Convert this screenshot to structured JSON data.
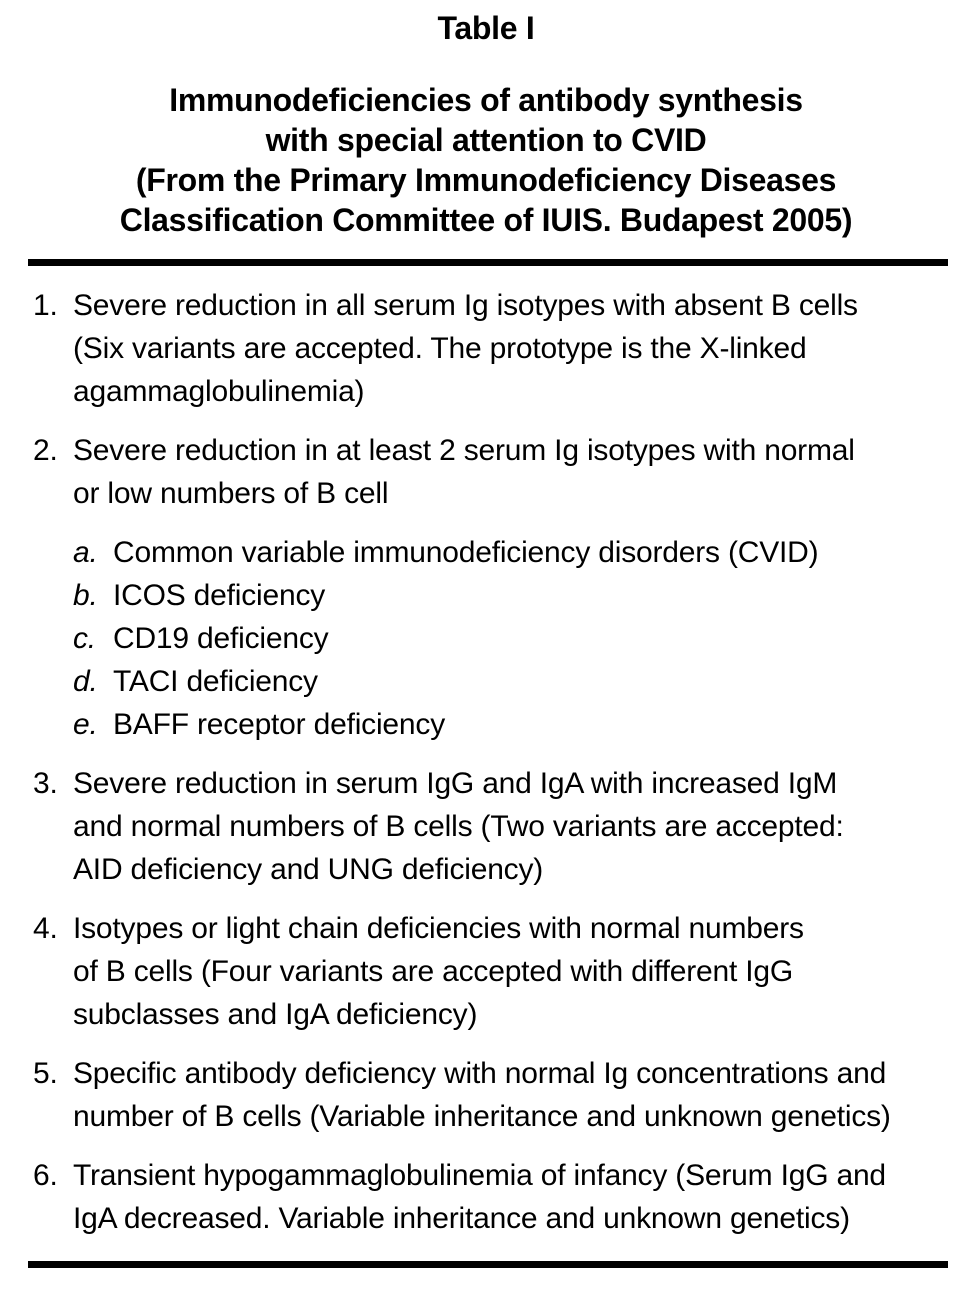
{
  "colors": {
    "text": "#000000",
    "background": "#ffffff",
    "rule": "#000000"
  },
  "header": {
    "table_label": "Table I",
    "title": "Immunodeficiencies of antibody synthesis\nwith special attention to CVID\n(From the Primary Immunodeficiency Diseases\nClassification Committee of IUIS. Budapest 2005)"
  },
  "items": [
    {
      "marker": "1.",
      "text": "Severe reduction in all serum Ig isotypes with absent B cells\n(Six variants are accepted. The prototype is the X-linked\nagammaglobulinemia)"
    },
    {
      "marker": "2.",
      "text": "Severe reduction in at least 2 serum Ig isotypes with normal\nor low numbers of B cell",
      "sub": [
        {
          "marker": "a.",
          "text": "Common variable immunodeficiency disorders (CVID)"
        },
        {
          "marker": "b.",
          "text": "ICOS deficiency"
        },
        {
          "marker": "c.",
          "text": "CD19 deficiency"
        },
        {
          "marker": "d.",
          "text": "TACI deficiency"
        },
        {
          "marker": "e.",
          "text": "BAFF receptor deficiency"
        }
      ]
    },
    {
      "marker": "3.",
      "text": "Severe reduction in serum IgG and IgA with increased IgM\nand normal numbers of B cells (Two variants are accepted:\nAID deficiency and UNG deficiency)"
    },
    {
      "marker": "4.",
      "text": "Isotypes or light chain deficiencies with normal numbers\nof B cells (Four variants are accepted with different IgG\nsubclasses and IgA deficiency)"
    },
    {
      "marker": "5.",
      "text": "Specific antibody deficiency with normal Ig concentrations and\nnumber of B cells (Variable inheritance and unknown genetics)"
    },
    {
      "marker": "6.",
      "text": "Transient hypogammaglobulinemia of infancy (Serum IgG and\nIgA decreased. Variable inheritance and unknown genetics)"
    }
  ]
}
